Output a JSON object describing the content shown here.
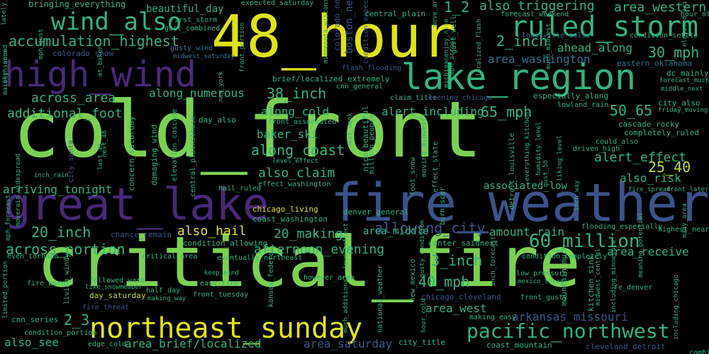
{
  "title": "word cloud",
  "palette": {
    "yellow": "#dfe318",
    "lime": "#b8de29",
    "green": "#7ad151",
    "green2": "#5ec962",
    "teal": "#2fb47c",
    "teal2": "#22a884",
    "cyan": "#1f9e89",
    "blue": "#2c728e",
    "blue2": "#31688e",
    "indigo": "#3b528b",
    "purple": "#482878",
    "purple2": "#440154"
  },
  "words": [
    {
      "text": "cold_front",
      "color": "green",
      "weight": "large"
    },
    {
      "text": "critical_fire",
      "color": "green",
      "weight": "large"
    },
    {
      "text": "48_hour",
      "color": "yellow",
      "weight": "large"
    },
    {
      "text": "fire_weather",
      "color": "indigo",
      "weight": "large"
    },
    {
      "text": "great_lake",
      "color": "purple",
      "weight": "large"
    },
    {
      "text": "lake_region",
      "color": "teal",
      "weight": "large"
    },
    {
      "text": "high_wind",
      "color": "purple",
      "weight": "large"
    },
    {
      "text": "northeast_sunday",
      "color": "yellow",
      "weight": "medium"
    },
    {
      "text": "ruled_storm",
      "color": "teal",
      "weight": "medium"
    },
    {
      "text": "wind_also",
      "color": "teal",
      "weight": "medium"
    },
    {
      "text": "pacific_northwest",
      "color": "teal",
      "weight": "medium"
    },
    {
      "text": "60_million",
      "color": "teal",
      "weight": "medium"
    },
    {
      "text": "accumulation_highest",
      "color": "teal",
      "weight": "small"
    },
    {
      "text": "along_coast",
      "color": "teal",
      "weight": "small"
    },
    {
      "text": "also_claim",
      "color": "teal",
      "weight": "small"
    },
    {
      "text": "alert_effect",
      "color": "teal",
      "weight": "small"
    },
    {
      "text": "3_inch",
      "color": "teal",
      "weight": "small"
    },
    {
      "text": "40_mph",
      "color": "teal",
      "weight": "small"
    },
    {
      "text": "30_mph",
      "color": "teal",
      "weight": "small"
    },
    {
      "text": "20_inch",
      "color": "teal",
      "weight": "small"
    },
    {
      "text": "20_making",
      "color": "teal",
      "weight": "small"
    },
    {
      "text": "38_inch",
      "color": "teal",
      "weight": "small"
    },
    {
      "text": "65_mph",
      "color": "teal",
      "weight": "small"
    },
    {
      "text": "50_65",
      "color": "teal",
      "weight": "small"
    },
    {
      "text": "25_40",
      "color": "lime",
      "weight": "small"
    },
    {
      "text": "1_2",
      "color": "teal",
      "weight": "small"
    },
    {
      "text": "2_3",
      "color": "teal",
      "weight": "small"
    },
    {
      "text": "2_inch",
      "color": "teal",
      "weight": "small"
    },
    {
      "text": "also_triggering",
      "color": "teal",
      "weight": "small"
    },
    {
      "text": "area_western",
      "color": "teal",
      "weight": "small"
    },
    {
      "text": "ahead_along",
      "color": "teal",
      "weight": "small"
    },
    {
      "text": "area_washington",
      "color": "blue",
      "weight": "small"
    },
    {
      "text": "across_area",
      "color": "teal",
      "weight": "small"
    },
    {
      "text": "along_numerous",
      "color": "teal",
      "weight": "small"
    },
    {
      "text": "additional_foot",
      "color": "teal",
      "weight": "small"
    },
    {
      "text": "along_cold",
      "color": "teal",
      "weight": "small"
    },
    {
      "text": "alert_including",
      "color": "teal",
      "weight": "small"
    },
    {
      "text": "baker_ski",
      "color": "teal",
      "weight": "small"
    },
    {
      "text": "arriving_tonight",
      "color": "teal",
      "weight": "small"
    },
    {
      "text": "allowing_city",
      "color": "indigo",
      "weight": "small"
    },
    {
      "text": "also_risk",
      "color": "teal",
      "weight": "small"
    },
    {
      "text": "associated_low",
      "color": "teal",
      "weight": "small"
    },
    {
      "text": "also_hail",
      "color": "yellow",
      "weight": "small"
    },
    {
      "text": "amount_rain",
      "color": "teal",
      "weight": "small"
    },
    {
      "text": "area_middle",
      "color": "teal",
      "weight": "small"
    },
    {
      "text": "across_portion",
      "color": "teal",
      "weight": "small"
    },
    {
      "text": "afternoon_evening",
      "color": "teal",
      "weight": "small"
    },
    {
      "text": "area_receive",
      "color": "teal",
      "weight": "small"
    },
    {
      "text": "area_west",
      "color": "teal",
      "weight": "small"
    },
    {
      "text": "arkansas_missouri",
      "color": "indigo",
      "weight": "small"
    },
    {
      "text": "area_brief/localized",
      "color": "teal",
      "weight": "small"
    },
    {
      "text": "area_saturday",
      "color": "indigo",
      "weight": "small"
    },
    {
      "text": "also_see",
      "color": "teal",
      "weight": "small"
    },
    {
      "text": "chicago_living",
      "color": "yellow",
      "weight": "tiny"
    },
    {
      "text": "coast_washington",
      "color": "teal",
      "weight": "tiny"
    },
    {
      "text": "condition_allowing",
      "color": "teal",
      "weight": "tiny"
    },
    {
      "text": "eventually_northeast",
      "color": "teal",
      "weight": "tiny"
    },
    {
      "text": "chance_remain",
      "color": "indigo",
      "weight": "tiny"
    },
    {
      "text": "cascade_rocky",
      "color": "teal",
      "weight": "tiny"
    },
    {
      "text": "completely_ruled",
      "color": "teal",
      "weight": "tiny"
    },
    {
      "text": "city_also",
      "color": "teal",
      "weight": "tiny"
    },
    {
      "text": "friday_moving",
      "color": "teal",
      "weight": "tiny"
    },
    {
      "text": "dc_mainly",
      "color": "teal",
      "weight": "tiny"
    },
    {
      "text": "forecast_much",
      "color": "teal",
      "weight": "tiny"
    },
    {
      "text": "middle_next",
      "color": "teal",
      "weight": "tiny"
    },
    {
      "text": "eastern_oklahoma",
      "color": "blue",
      "weight": "tiny"
    },
    {
      "text": "condition_settle",
      "color": "teal",
      "weight": "tiny"
    },
    {
      "text": "hour_mt",
      "color": "teal",
      "weight": "tiny"
    },
    {
      "text": "forecast_weekend",
      "color": "teal",
      "weight": "tiny"
    },
    {
      "text": "louisville_tulsa",
      "color": "blue",
      "weight": "tiny"
    },
    {
      "text": "beautiful_day",
      "color": "teal",
      "weight": "tiny"
    },
    {
      "text": "bringing_everything",
      "color": "teal",
      "weight": "tiny"
    },
    {
      "text": "expected_saturday",
      "color": "teal",
      "weight": "tiny"
    },
    {
      "text": "central_plain",
      "color": "teal",
      "weight": "tiny"
    },
    {
      "text": "first_storm",
      "color": "teal",
      "weight": "tiny"
    },
    {
      "text": "gust_combined",
      "color": "teal",
      "weight": "tiny"
    },
    {
      "text": "gusty_wind",
      "color": "blue",
      "weight": "tiny"
    },
    {
      "text": "midwest_saturday",
      "color": "blue",
      "weight": "tiny"
    },
    {
      "text": "colorado_snow",
      "color": "indigo",
      "weight": "tiny"
    },
    {
      "text": "brief/localized_extremely",
      "color": "teal",
      "weight": "tiny"
    },
    {
      "text": "flash_flooding",
      "color": "indigo",
      "weight": "tiny"
    },
    {
      "text": "cnn_general",
      "color": "teal",
      "weight": "tiny"
    },
    {
      "text": "claim_title",
      "color": "teal",
      "weight": "tiny"
    },
    {
      "text": "evening_chicago",
      "color": "indigo",
      "weight": "tiny"
    },
    {
      "text": "especially_along",
      "color": "teal",
      "weight": "tiny"
    },
    {
      "text": "lowland_rain",
      "color": "teal",
      "weight": "tiny"
    },
    {
      "text": "day_also",
      "color": "teal",
      "weight": "tiny"
    },
    {
      "text": "front_associated",
      "color": "teal",
      "weight": "tiny"
    },
    {
      "text": "level_effect",
      "color": "teal",
      "weight": "tiny"
    },
    {
      "text": "effect_washington",
      "color": "teal",
      "weight": "tiny"
    },
    {
      "text": "could_also",
      "color": "teal",
      "weight": "tiny"
    },
    {
      "text": "driven_high",
      "color": "teal",
      "weight": "tiny"
    },
    {
      "text": "hail_ruled",
      "color": "teal",
      "weight": "tiny"
    },
    {
      "text": "fire_spread",
      "color": "teal",
      "weight": "tiny"
    },
    {
      "text": "front_later",
      "color": "teal",
      "weight": "tiny"
    },
    {
      "text": "flooding_especially",
      "color": "teal",
      "weight": "tiny"
    },
    {
      "text": "highest_near",
      "color": "teal",
      "weight": "tiny"
    },
    {
      "text": "denver_general",
      "color": "teal",
      "weight": "tiny"
    },
    {
      "text": "center_saidnext",
      "color": "teal",
      "weight": "tiny"
    },
    {
      "text": "condition_completely",
      "color": "teal",
      "weight": "tiny"
    },
    {
      "text": "chicago_cleveland",
      "color": "indigo",
      "weight": "tiny"
    },
    {
      "text": "however_area",
      "color": "teal",
      "weight": "tiny"
    },
    {
      "text": "low_pressure",
      "color": "teal",
      "weight": "tiny"
    },
    {
      "text": "mexico_texas",
      "color": "teal",
      "weight": "tiny"
    },
    {
      "text": "front_gusty",
      "color": "teal",
      "weight": "tiny"
    },
    {
      "text": "fe_denver",
      "color": "teal",
      "weight": "tiny"
    },
    {
      "text": "making_easy",
      "color": "teal",
      "weight": "tiny"
    },
    {
      "text": "city_title",
      "color": "teal",
      "weight": "tiny"
    },
    {
      "text": "coast_mountain",
      "color": "teal",
      "weight": "tiny"
    },
    {
      "text": "cleveland_detroit",
      "color": "indigo",
      "weight": "tiny"
    },
    {
      "text": "combined_humidity",
      "color": "teal",
      "weight": "tiny"
    },
    {
      "text": "edge_cold",
      "color": "teal",
      "weight": "tiny"
    },
    {
      "text": "condition_portion",
      "color": "teal",
      "weight": "tiny"
    },
    {
      "text": "cnn_series",
      "color": "teal",
      "weight": "tiny"
    },
    {
      "text": "fire_threat",
      "color": "indigo",
      "weight": "tiny"
    },
    {
      "text": "fire_burn",
      "color": "teal",
      "weight": "tiny"
    },
    {
      "text": "day_saturday",
      "color": "lime",
      "weight": "tiny"
    },
    {
      "text": "half_day",
      "color": "teal",
      "weight": "tiny"
    },
    {
      "text": "making_way",
      "color": "teal",
      "weight": "tiny"
    },
    {
      "text": "front_tuesday",
      "color": "teal",
      "weight": "tiny"
    },
    {
      "text": "easy_fire",
      "color": "teal",
      "weight": "tiny"
    },
    {
      "text": "keep_mind",
      "color": "teal",
      "weight": "tiny"
    },
    {
      "text": "followed_warm",
      "color": "teal",
      "weight": "tiny"
    },
    {
      "text": "like_snowmember",
      "color": "teal",
      "weight": "tiny"
    },
    {
      "text": "critical_area",
      "color": "teal",
      "weight": "tiny"
    },
    {
      "text": "even_tornado",
      "color": "teal",
      "weight": "tiny"
    },
    {
      "text": "inch_rain",
      "color": "teal",
      "weight": "tiny"
    },
    {
      "text": "city_santa",
      "color": "indigo",
      "weight": "tiny"
    },
    {
      "text": "concern_saturday",
      "color": "teal",
      "weight": "tiny"
    },
    {
      "text": "damaging_wind",
      "color": "teal",
      "weight": "tiny"
    },
    {
      "text": "central_plainsthose",
      "color": "teal",
      "weight": "tiny"
    },
    {
      "text": "elevation_cascade",
      "color": "teal",
      "weight": "tiny"
    },
    {
      "text": "many_area",
      "color": "teal",
      "weight": "tiny"
    },
    {
      "text": "boston_new",
      "color": "indigo",
      "weight": "tiny"
    },
    {
      "text": "colorado_new",
      "color": "indigo",
      "weight": "tiny"
    },
    {
      "text": "condition_expected",
      "color": "indigo",
      "weight": "tiny"
    },
    {
      "text": "move_area",
      "color": "teal",
      "weight": "tiny"
    },
    {
      "text": "mph_across",
      "color": "teal",
      "weight": "tiny"
    },
    {
      "text": "lately_last",
      "color": "teal",
      "weight": "tiny"
    },
    {
      "text": "mt_baker",
      "color": "teal",
      "weight": "tiny"
    },
    {
      "text": "mainly_second",
      "color": "teal",
      "weight": "tiny"
    },
    {
      "text": "mph_gust",
      "color": "teal",
      "weight": "tiny"
    },
    {
      "text": "front_portion",
      "color": "teal",
      "weight": "tiny"
    },
    {
      "text": "localized_flash",
      "color": "teal",
      "weight": "tiny"
    },
    {
      "text": "much_midwest",
      "color": "teal",
      "weight": "tiny"
    },
    {
      "text": "gust_well",
      "color": "teal",
      "weight": "tiny"
    },
    {
      "text": "next_week",
      "color": "teal",
      "weight": "tiny"
    },
    {
      "text": "inch_forecast",
      "color": "teal",
      "weight": "tiny"
    },
    {
      "text": "new_york",
      "color": "lime",
      "weight": "tiny"
    },
    {
      "text": "much_additional",
      "color": "teal",
      "weight": "tiny"
    },
    {
      "text": "nice_beautiful",
      "color": "teal",
      "weight": "tiny"
    },
    {
      "text": "million_people",
      "color": "teal",
      "weight": "tiny"
    },
    {
      "text": "moving_midwest",
      "color": "teal",
      "weight": "tiny"
    },
    {
      "text": "effect_state",
      "color": "teal",
      "weight": "tiny"
    },
    {
      "text": "foot_snow",
      "color": "teal",
      "weight": "tiny"
    },
    {
      "text": "burn_scar",
      "color": "teal",
      "weight": "tiny"
    },
    {
      "text": "detroit_louisville",
      "color": "teal",
      "weight": "tiny"
    },
    {
      "text": "gusty_condition",
      "color": "teal",
      "weight": "tiny"
    },
    {
      "text": "hour_cold",
      "color": "teal",
      "weight": "tiny"
    },
    {
      "text": "including_chicago",
      "color": "teal",
      "weight": "tiny"
    },
    {
      "text": "including_minnesota",
      "color": "teal",
      "weight": "tiny"
    },
    {
      "text": "national_weather",
      "color": "teal",
      "weight": "tiny"
    },
    {
      "text": "kansas_federal",
      "color": "teal",
      "weight": "tiny"
    },
    {
      "text": "living_windy",
      "color": "teal",
      "weight": "tiny"
    },
    {
      "text": "new_mexico",
      "color": "teal",
      "weight": "tiny"
    },
    {
      "text": "mountain_much",
      "color": "teal",
      "weight": "tiny"
    },
    {
      "text": "kitchen_sink",
      "color": "teal",
      "weight": "tiny"
    },
    {
      "text": "midwest_central",
      "color": "teal",
      "weight": "tiny"
    },
    {
      "text": "everything_kitchen",
      "color": "teal",
      "weight": "tiny"
    },
    {
      "text": "liking_level",
      "color": "teal",
      "weight": "tiny"
    },
    {
      "text": "humidity_level",
      "color": "teal",
      "weight": "tiny"
    },
    {
      "text": "last_48",
      "color": "teal",
      "weight": "tiny"
    },
    {
      "text": "next_48",
      "color": "teal",
      "weight": "tiny"
    },
    {
      "text": "gust_50",
      "color": "teal",
      "weight": "tiny"
    },
    {
      "text": "inch_way",
      "color": "teal",
      "weight": "tiny"
    },
    {
      "text": "inch_snow",
      "color": "teal",
      "weight": "tiny"
    },
    {
      "text": "elevated_critical",
      "color": "teal",
      "weight": "tiny"
    },
    {
      "text": "michiganenjoy_nice",
      "color": "teal",
      "weight": "tiny"
    },
    {
      "text": "minnesota_wisconsin",
      "color": "teal",
      "weight": "tiny"
    },
    {
      "text": "moverain_widespread",
      "color": "teal",
      "weight": "tiny"
    },
    {
      "text": "mph_forecast",
      "color": "teal",
      "weight": "tiny"
    },
    {
      "text": "limited_portion",
      "color": "teal",
      "weight": "tiny"
    },
    {
      "text": "level_effect",
      "color": "teal",
      "weight": "tiny"
    },
    {
      "text": "meaning_potential",
      "color": "teal",
      "weight": "tiny"
    },
    {
      "text": "extremely_critical",
      "color": "teal",
      "weight": "tiny"
    },
    {
      "text": "critical_condition",
      "color": "teal",
      "weight": "tiny"
    },
    {
      "text": "mix_condition",
      "color": "teal",
      "weight": "tiny"
    },
    {
      "text": "monday_cold",
      "color": "teal",
      "weight": "tiny"
    }
  ]
}
